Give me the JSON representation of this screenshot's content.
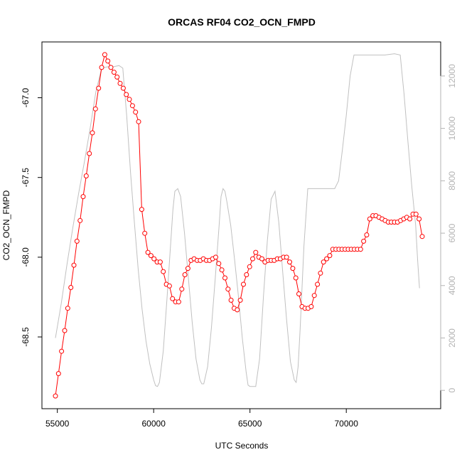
{
  "chart_data": {
    "type": "line",
    "title": "ORCAS RF04 CO2_OCN_FMPD",
    "xlabel": "UTC Seconds",
    "ylabel": "CO2_OCN_FMPD",
    "xlim": [
      54200,
      74900
    ],
    "ylim": [
      -68.95,
      -66.65
    ],
    "y2lim": [
      -700,
      13300
    ],
    "x_ticks": [
      55000,
      60000,
      65000,
      70000
    ],
    "x_tick_labels": [
      "55000",
      "60000",
      "65000",
      "70000"
    ],
    "y_ticks": [
      -68.5,
      -68.0,
      -67.5,
      -67.0
    ],
    "y_tick_labels": [
      "-68.5",
      "-68.0",
      "-67.5",
      "-67.0"
    ],
    "y2_ticks": [
      0,
      2000,
      4000,
      6000,
      8000,
      10000,
      12000
    ],
    "y2_tick_labels": [
      "0",
      "2000",
      "4000",
      "6000",
      "8000",
      "10000",
      "12000"
    ],
    "grid": false,
    "colors": {
      "primary": "#ff0000",
      "secondary": "#c0c0c0"
    },
    "series": [
      {
        "axis": "left",
        "style": "points+line",
        "color": "#ff0000",
        "x": [
          54900,
          55060,
          55220,
          55380,
          55540,
          55700,
          55860,
          56020,
          56180,
          56340,
          56500,
          56660,
          56820,
          56980,
          57140,
          57300,
          57460,
          57620,
          57780,
          57940,
          58100,
          58260,
          58420,
          58580,
          58740,
          58900,
          59060,
          59220,
          59380,
          59540,
          59700,
          59860,
          60020,
          60180,
          60340,
          60500,
          60660,
          60820,
          60980,
          61140,
          61300,
          61460,
          61620,
          61780,
          61940,
          62100,
          62260,
          62420,
          62580,
          62740,
          62900,
          63060,
          63220,
          63380,
          63540,
          63700,
          63860,
          64020,
          64180,
          64340,
          64500,
          64660,
          64820,
          64980,
          65140,
          65300,
          65460,
          65620,
          65780,
          65940,
          66100,
          66260,
          66420,
          66580,
          66740,
          66900,
          67060,
          67220,
          67380,
          67540,
          67700,
          67860,
          68020,
          68180,
          68340,
          68500,
          68660,
          68820,
          68980,
          69140,
          69300,
          69460,
          69620,
          69780,
          69940,
          70100,
          70260,
          70420,
          70580,
          70740,
          70900,
          71060,
          71220,
          71380,
          71540,
          71700,
          71860,
          72020,
          72180,
          72340,
          72500,
          72660,
          72820,
          72980,
          73140,
          73300,
          73460,
          73620,
          73780,
          73940
        ],
        "y": [
          -68.87,
          -68.73,
          -68.59,
          -68.46,
          -68.32,
          -68.19,
          -68.05,
          -67.9,
          -67.77,
          -67.62,
          -67.49,
          -67.35,
          -67.22,
          -67.07,
          -66.94,
          -66.81,
          -66.73,
          -66.77,
          -66.81,
          -66.84,
          -66.87,
          -66.91,
          -66.94,
          -66.98,
          -67.01,
          -67.05,
          -67.09,
          -67.15,
          -67.7,
          -67.85,
          -67.97,
          -67.99,
          -68.01,
          -68.03,
          -68.03,
          -68.09,
          -68.17,
          -68.18,
          -68.26,
          -68.28,
          -68.28,
          -68.2,
          -68.11,
          -68.07,
          -68.02,
          -68.01,
          -68.02,
          -68.02,
          -68.01,
          -68.02,
          -68.02,
          -68.01,
          -68.0,
          -68.04,
          -68.08,
          -68.13,
          -68.2,
          -68.27,
          -68.32,
          -68.33,
          -68.27,
          -68.17,
          -68.11,
          -68.06,
          -68.01,
          -67.97,
          -68.0,
          -68.01,
          -68.03,
          -68.02,
          -68.02,
          -68.02,
          -68.01,
          -68.01,
          -68.0,
          -68.0,
          -68.03,
          -68.07,
          -68.13,
          -68.23,
          -68.31,
          -68.32,
          -68.32,
          -68.31,
          -68.24,
          -68.17,
          -68.1,
          -68.03,
          -68.01,
          -67.99,
          -67.95,
          -67.95,
          -67.95,
          -67.95,
          -67.95,
          -67.95,
          -67.95,
          -67.95,
          -67.95,
          -67.95,
          -67.9,
          -67.86,
          -67.76,
          -67.74,
          -67.74,
          -67.75,
          -67.76,
          -67.77,
          -67.78,
          -67.78,
          -67.78,
          -67.78,
          -67.77,
          -67.76,
          -67.75,
          -67.76,
          -67.73,
          -67.73,
          -67.76,
          -67.87
        ],
        "note_order": "points plotted in x order; y values read from left axis"
      },
      {
        "axis": "right",
        "style": "line",
        "color": "#c0c0c0",
        "x": [
          54900,
          55200,
          55500,
          55800,
          56100,
          56400,
          56700,
          57000,
          57300,
          57600,
          57900,
          58200,
          58400,
          58450,
          58600,
          58800,
          59000,
          59200,
          59400,
          59600,
          59800,
          60000,
          60100,
          60200,
          60300,
          60500,
          60700,
          60900,
          61000,
          61100,
          61250,
          61400,
          61600,
          61800,
          62000,
          62200,
          62400,
          62500,
          62600,
          62800,
          63000,
          63200,
          63400,
          63500,
          63600,
          63700,
          63800,
          64000,
          64200,
          64400,
          64600,
          64800,
          64900,
          65000,
          65100,
          65300,
          65500,
          65700,
          65900,
          66100,
          66300,
          66500,
          66700,
          66900,
          67100,
          67300,
          67400,
          67500,
          67600,
          67800,
          68000,
          68200,
          68400,
          68600,
          68800,
          69000,
          69200,
          69400,
          69600,
          69800,
          70000,
          70200,
          70400,
          70600,
          71000,
          71500,
          72000,
          72500,
          72800,
          73000,
          73200,
          73400,
          73600,
          73700,
          73800
        ],
        "y": [
          2000,
          3300,
          4800,
          6200,
          7500,
          8700,
          10000,
          11400,
          12300,
          12350,
          12350,
          12400,
          12300,
          11800,
          10500,
          8300,
          6400,
          4600,
          3100,
          1900,
          1000,
          400,
          180,
          150,
          300,
          1500,
          3600,
          5800,
          6900,
          7600,
          7700,
          7400,
          6000,
          4300,
          2600,
          1200,
          400,
          250,
          250,
          900,
          2400,
          4300,
          6300,
          7400,
          7700,
          7600,
          7200,
          6300,
          5000,
          3600,
          2000,
          700,
          200,
          150,
          150,
          150,
          1200,
          3600,
          5700,
          7300,
          7600,
          6400,
          4500,
          2700,
          1100,
          400,
          300,
          900,
          2300,
          5500,
          7700,
          7700,
          7700,
          7700,
          7700,
          7700,
          7700,
          7700,
          8000,
          9200,
          10500,
          12000,
          12800,
          12800,
          12800,
          12800,
          12800,
          12850,
          12800,
          11300,
          9500,
          7800,
          6300,
          5000,
          3900
        ]
      }
    ]
  }
}
